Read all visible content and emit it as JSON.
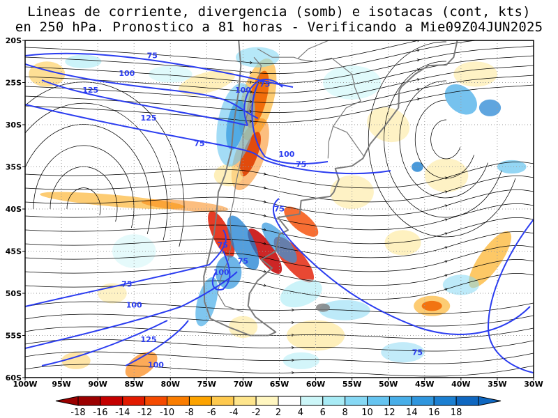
{
  "title": {
    "line1": "Lineas de corriente, divergencia (somb) e isotacas (cont, kts)",
    "line2": "en 250 hPa. Pronostico a 81 horas - Verificando a Mie09Z04JUN2025"
  },
  "map": {
    "lon_labels": [
      "100W",
      "95W",
      "90W",
      "85W",
      "80W",
      "75W",
      "70W",
      "65W",
      "60W",
      "55W",
      "50W",
      "45W",
      "40W",
      "35W",
      "30W"
    ],
    "lat_labels": [
      "20S",
      "25S",
      "30S",
      "35S",
      "40S",
      "45S",
      "50S",
      "55S",
      "60S"
    ],
    "isotach_labels": [
      {
        "text": "75",
        "lon": -82.5,
        "lat": -22.1
      },
      {
        "text": "100",
        "lon": -86,
        "lat": -24.2
      },
      {
        "text": "125",
        "lon": -91,
        "lat": -26.2
      },
      {
        "text": "125",
        "lon": -83,
        "lat": -29.5
      },
      {
        "text": "75",
        "lon": -76,
        "lat": -32.5
      },
      {
        "text": "100",
        "lon": -70,
        "lat": -26.2
      },
      {
        "text": "75",
        "lon": -67,
        "lat": -25.5
      },
      {
        "text": "100",
        "lon": -64,
        "lat": -33.8
      },
      {
        "text": "75",
        "lon": -62,
        "lat": -35
      },
      {
        "text": "75",
        "lon": -65,
        "lat": -40.3
      },
      {
        "text": "75",
        "lon": -72.8,
        "lat": -44.6
      },
      {
        "text": "75",
        "lon": -70,
        "lat": -46.5
      },
      {
        "text": "100",
        "lon": -73,
        "lat": -47.8
      },
      {
        "text": "75",
        "lon": -86,
        "lat": -49.2
      },
      {
        "text": "100",
        "lon": -85,
        "lat": -51.7
      },
      {
        "text": "125",
        "lon": -83,
        "lat": -55.8
      },
      {
        "text": "100",
        "lon": -82,
        "lat": -58.8
      },
      {
        "text": "75",
        "lon": -46,
        "lat": -57.3
      }
    ]
  },
  "colorbar": {
    "labels": [
      "-18",
      "-16",
      "-14",
      "-12",
      "-10",
      "-8",
      "-6",
      "-4",
      "-2",
      "2",
      "4",
      "6",
      "8",
      "10",
      "12",
      "14",
      "16",
      "18"
    ],
    "colors": [
      "#9b0000",
      "#c40000",
      "#e21a00",
      "#f54a00",
      "#fa7d00",
      "#fca300",
      "#fec94e",
      "#fee58c",
      "#fff6c0",
      "#ffffff",
      "#ccf6f8",
      "#a8ebf5",
      "#86d8f4",
      "#66c4f0",
      "#48aee8",
      "#2f96de",
      "#1b7fd1",
      "#0f67c0"
    ],
    "min_arrow_color": "#9b0000",
    "max_arrow_color": "#0f67c0"
  },
  "colors": {
    "isotach": "#2a3cf0",
    "coast": "#7a7a7a",
    "streamline": "#000000",
    "grid": "#9a9a9a"
  }
}
